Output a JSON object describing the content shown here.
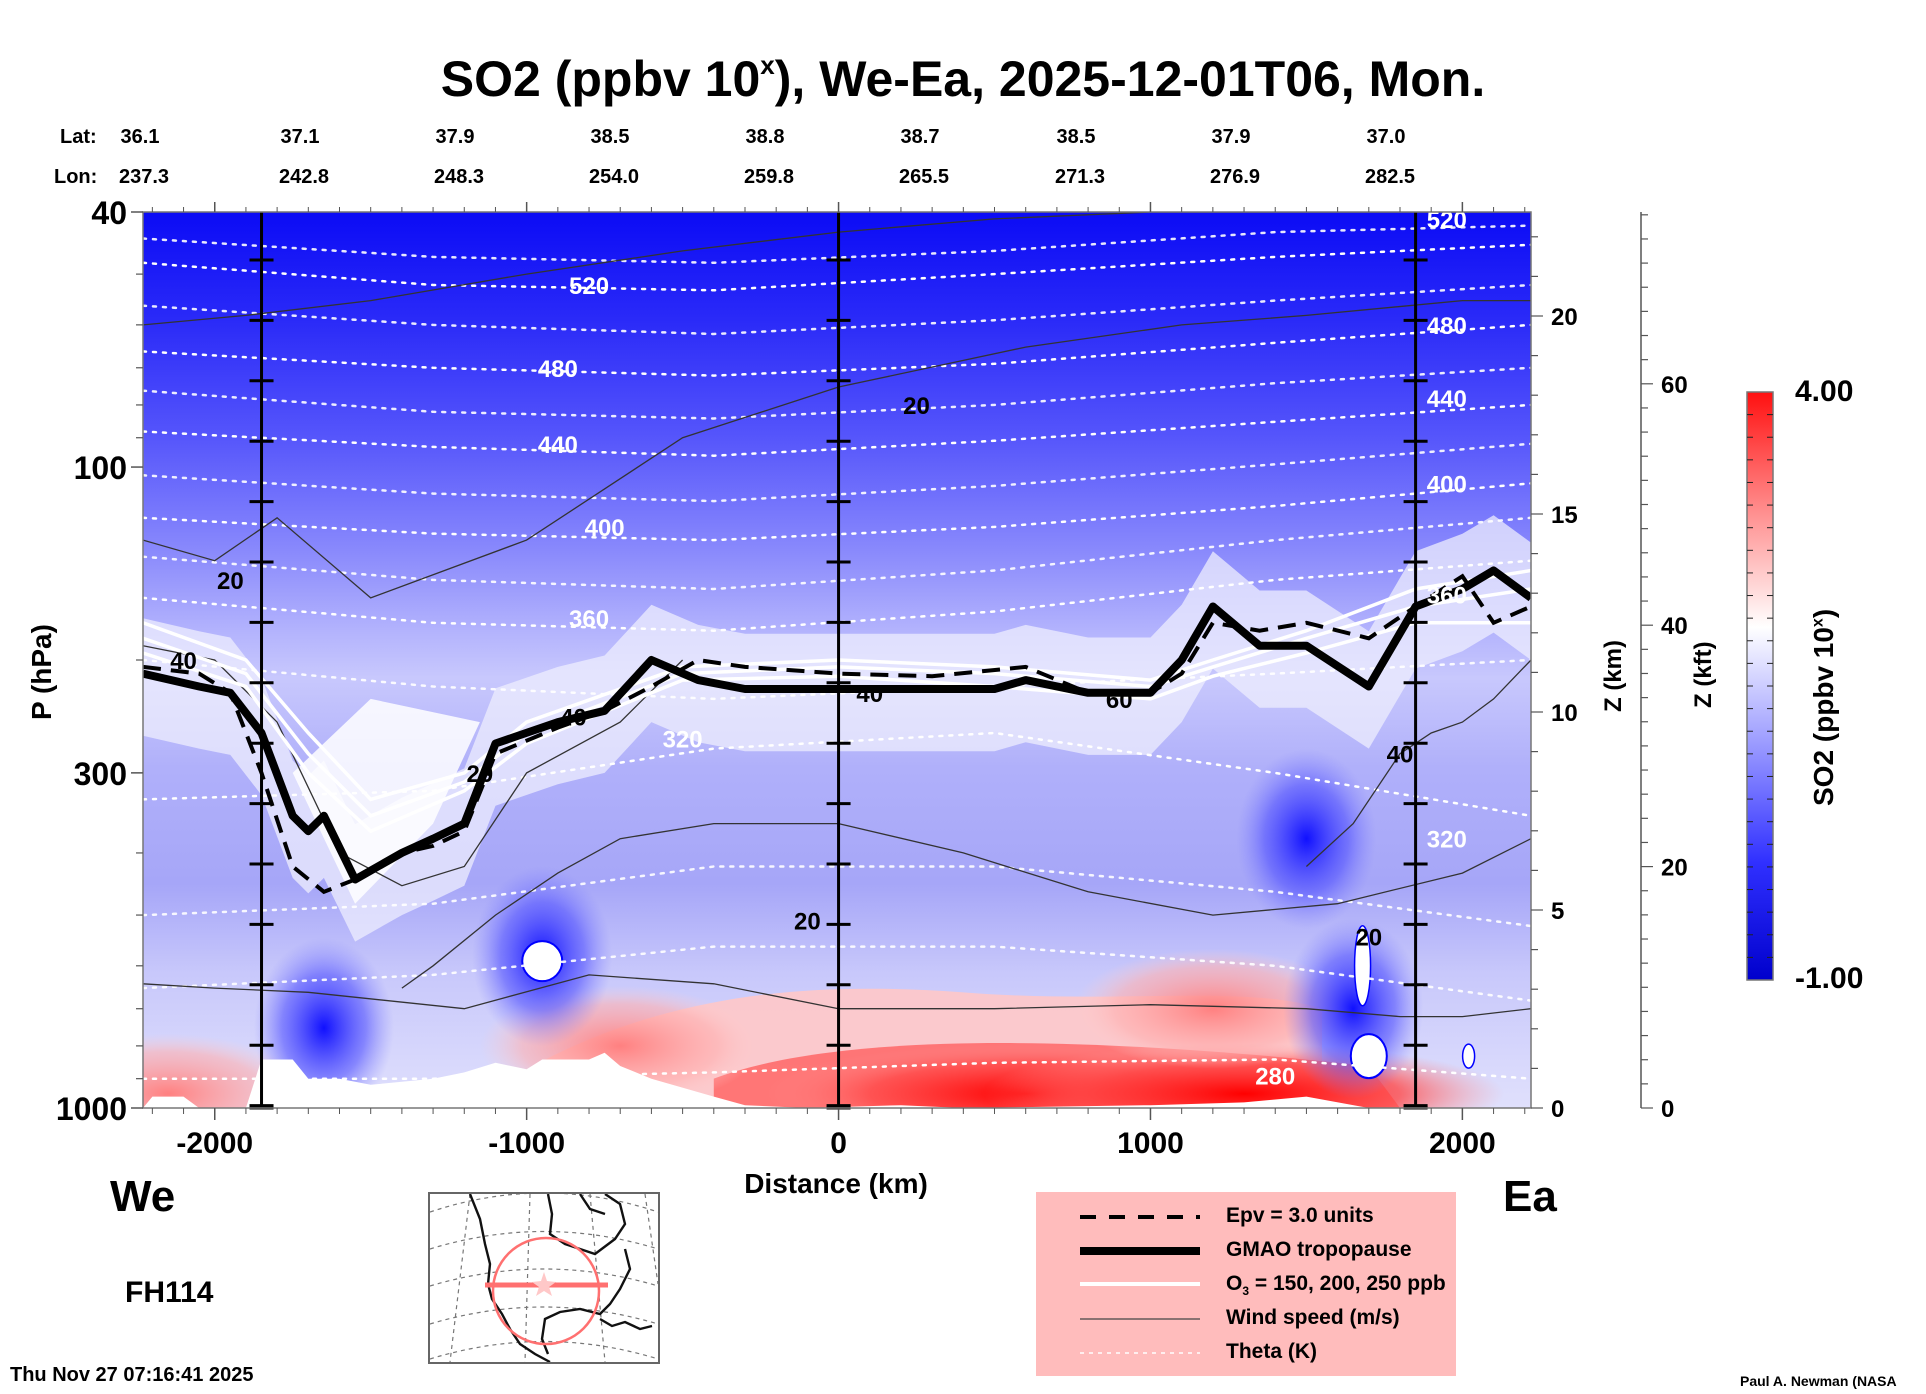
{
  "title": {
    "main": "SO2 (ppbv 10",
    "sup": "x",
    "rest": "), We-Ea, 2025-12-01T06, Mon."
  },
  "latlon": {
    "lat_label": "Lat:",
    "lon_label": "Lon:",
    "lat": [
      "36.1",
      "37.1",
      "37.9",
      "38.5",
      "38.8",
      "38.7",
      "38.5",
      "37.9",
      "37.0"
    ],
    "lon": [
      "237.3",
      "242.8",
      "248.3",
      "254.0",
      "259.8",
      "265.5",
      "271.3",
      "276.9",
      "282.5"
    ]
  },
  "left_direction": "We",
  "right_direction": "Ea",
  "forecast_hour": "FH114",
  "timestamp": "Thu Nov 27 07:16:41 2025",
  "credit": "Paul A. Newman (NASA",
  "legend": [
    {
      "style": "dashed",
      "label": "Epv = 3.0 units"
    },
    {
      "style": "thick",
      "label": "GMAO tropopause"
    },
    {
      "style": "white",
      "label_pre": "O",
      "label_sub": "3",
      "label": " = 150, 200, 250 ppb"
    },
    {
      "style": "thin",
      "label": "Wind speed (m/s)"
    },
    {
      "style": "dotted",
      "label": "Theta (K)"
    }
  ],
  "colorbar": {
    "label": "SO2 (ppbv 10",
    "label_sup": "x",
    "label_end": ")",
    "max_label": "4.00",
    "min_label": "-1.00",
    "range": [
      -1.0,
      4.0
    ],
    "low_color": "#0000d0",
    "mid_color": "#ffffff",
    "high_color": "#ff0000"
  },
  "chart_data": {
    "type": "heatmap",
    "title": "SO2 (ppbv 10^x), We-Ea, 2025-12-01T06, Mon.",
    "xlabel": "Distance (km)",
    "ylabel": "P (hPa)",
    "y2label": "Z (km)",
    "y3label": "Z (kft)",
    "xlim": [
      -2230,
      2220
    ],
    "ylim": [
      1000,
      40
    ],
    "yscale": "log",
    "x_ticks": [
      -2000,
      -1000,
      0,
      1000,
      2000
    ],
    "x_tick_labels": [
      "-2000",
      "-1000",
      "0",
      "1000",
      "2000"
    ],
    "y_ticks": [
      40,
      100,
      300,
      1000
    ],
    "y_tick_labels": [
      "40",
      "100",
      "300",
      "1000"
    ],
    "zkm_ticks": [
      0,
      5,
      10,
      15,
      20
    ],
    "zkm_tick_labels": [
      "0",
      "5",
      "10",
      "15",
      "20"
    ],
    "zkft_ticks": [
      0,
      20,
      40,
      60
    ],
    "zkft_tick_labels": [
      "0",
      "20",
      "40",
      "60"
    ],
    "vertical_markers_km": [
      -1850,
      0,
      1850
    ],
    "theta_levels": [
      {
        "value": 520,
        "label": "520",
        "p": [
          48,
          52,
          53,
          50,
          47,
          45
        ]
      },
      {
        "value": 480,
        "label": "480",
        "p": [
          66,
          70,
          72,
          69,
          64,
          60
        ]
      },
      {
        "value": 440,
        "label": "440",
        "p": [
          88,
          93,
          96,
          91,
          85,
          80
        ]
      },
      {
        "value": 400,
        "label": "400",
        "p": [
          120,
          127,
          130,
          124,
          115,
          106
        ]
      },
      {
        "value": 360,
        "label": "360",
        "p": [
          160,
          175,
          180,
          168,
          150,
          140
        ]
      },
      {
        "value": 320,
        "label": "320",
        "p": [
          330,
          320,
          275,
          260,
          300,
          350
        ]
      },
      {
        "value": 280,
        "label": "280",
        "p": [
          900,
          900,
          880,
          850,
          840,
          900
        ]
      }
    ],
    "theta_x": [
      -2230,
      -1300,
      -400,
      500,
      1400,
      2220
    ],
    "theta_label_positions": [
      {
        "label": "520",
        "x": -800,
        "p": 52
      },
      {
        "label": "480",
        "x": -900,
        "p": 70
      },
      {
        "label": "440",
        "x": -900,
        "p": 92
      },
      {
        "label": "400",
        "x": -750,
        "p": 124
      },
      {
        "label": "360",
        "x": -800,
        "p": 172
      },
      {
        "label": "320",
        "x": -500,
        "p": 265
      },
      {
        "label": "520",
        "x": 1950,
        "p": 41
      },
      {
        "label": "480",
        "x": 1950,
        "p": 60
      },
      {
        "label": "440",
        "x": 1950,
        "p": 78
      },
      {
        "label": "400",
        "x": 1950,
        "p": 106
      },
      {
        "label": "360",
        "x": 1950,
        "p": 158
      },
      {
        "label": "320",
        "x": 1950,
        "p": 380
      },
      {
        "label": "280",
        "x": 1400,
        "p": 890
      }
    ],
    "tropopause": {
      "x": [
        -2230,
        -2050,
        -1950,
        -1850,
        -1750,
        -1700,
        -1650,
        -1550,
        -1400,
        -1300,
        -1200,
        -1100,
        -900,
        -750,
        -600,
        -450,
        -300,
        0,
        500,
        600,
        800,
        1000,
        1100,
        1200,
        1350,
        1500,
        1700,
        1850,
        2000,
        2100,
        2220
      ],
      "p": [
        210,
        220,
        225,
        260,
        350,
        370,
        350,
        440,
        400,
        380,
        360,
        270,
        250,
        240,
        200,
        215,
        222,
        222,
        222,
        215,
        225,
        225,
        200,
        165,
        190,
        190,
        220,
        165,
        155,
        145,
        160
      ]
    },
    "epv3": {
      "x": [
        -2230,
        -2050,
        -1950,
        -1850,
        -1750,
        -1650,
        -1550,
        -1400,
        -1300,
        -1200,
        -1100,
        -900,
        -750,
        -600,
        -450,
        -300,
        0,
        300,
        600,
        800,
        1000,
        1100,
        1200,
        1350,
        1500,
        1700,
        1850,
        2000,
        2100,
        2220
      ],
      "p": [
        205,
        210,
        225,
        300,
        420,
        460,
        440,
        400,
        390,
        370,
        280,
        255,
        240,
        220,
        200,
        205,
        210,
        212,
        205,
        225,
        225,
        210,
        175,
        180,
        175,
        185,
        165,
        148,
        175,
        165
      ]
    },
    "o3_lines": [
      {
        "value": 150,
        "x": [
          -2230,
          -1900,
          -1700,
          -1500,
          -1200,
          -1000,
          -500,
          0,
          500,
          1000,
          1200,
          1500,
          1850,
          2220
        ],
        "p": [
          175,
          200,
          260,
          330,
          300,
          250,
          205,
          200,
          205,
          215,
          200,
          180,
          155,
          145
        ]
      },
      {
        "value": 200,
        "x": [
          -2230,
          -1900,
          -1700,
          -1500,
          -1200,
          -1000,
          -500,
          0,
          500,
          1000,
          1200,
          1500,
          1850,
          2220
        ],
        "p": [
          185,
          210,
          280,
          350,
          310,
          260,
          210,
          205,
          210,
          220,
          205,
          185,
          165,
          155
        ]
      },
      {
        "value": 250,
        "x": [
          -2230,
          -1900,
          -1700,
          -1500,
          -1200,
          -1000,
          -500,
          0,
          500,
          1000,
          1200,
          1500,
          1850,
          2220
        ],
        "p": [
          195,
          220,
          300,
          370,
          320,
          270,
          215,
          212,
          220,
          230,
          212,
          195,
          175,
          175
        ]
      }
    ],
    "wind_contours": [
      {
        "label": "20",
        "x": [
          -2230,
          -1900,
          -1500,
          -1000,
          -500,
          0,
          500,
          1000,
          1500,
          1900,
          2220
        ],
        "p": [
          60,
          58,
          55,
          50,
          46,
          43,
          41,
          40,
          40,
          40,
          40
        ]
      },
      {
        "label": "20",
        "x": [
          -2230,
          -2000,
          -1800,
          -1500,
          -1000,
          -500,
          0,
          600,
          1100,
          1500,
          2000,
          2220
        ],
        "p": [
          130,
          140,
          120,
          160,
          130,
          90,
          75,
          65,
          60,
          58,
          55,
          55
        ]
      },
      {
        "label": "40",
        "x": [
          -2230,
          -2000,
          -1800,
          -1600,
          -1400,
          -1200,
          -1000,
          -700,
          -500
        ],
        "p": [
          190,
          200,
          250,
          400,
          450,
          420,
          300,
          250,
          200
        ]
      },
      {
        "label": "20",
        "x": [
          -1400,
          -1300,
          -1100,
          -900,
          -700,
          -400,
          0,
          400,
          800,
          1200,
          1600,
          2000,
          2220
        ],
        "p": [
          650,
          600,
          500,
          430,
          380,
          360,
          360,
          400,
          460,
          500,
          480,
          430,
          380
        ]
      },
      {
        "label": "20",
        "x": [
          -2230,
          -2000,
          -1700,
          -1200,
          -800,
          -400,
          0,
          500,
          1000,
          1500,
          1800,
          2000,
          2220
        ],
        "p": [
          640,
          650,
          660,
          700,
          620,
          640,
          700,
          700,
          690,
          700,
          720,
          720,
          700
        ]
      },
      {
        "label": "40",
        "x": [
          1500,
          1650,
          1800,
          1900,
          2000,
          2100,
          2220
        ],
        "p": [
          420,
          360,
          280,
          260,
          250,
          230,
          200
        ]
      }
    ],
    "wind_label_positions": [
      {
        "label": "20",
        "x": 250,
        "p": 80
      },
      {
        "label": "20",
        "x": -1950,
        "p": 150
      },
      {
        "label": "40",
        "x": -2100,
        "p": 200
      },
      {
        "label": "20",
        "x": -1150,
        "p": 300
      },
      {
        "label": "40",
        "x": -850,
        "p": 245
      },
      {
        "label": "40",
        "x": 100,
        "p": 225
      },
      {
        "label": "60",
        "x": 900,
        "p": 230
      },
      {
        "label": "40",
        "x": 1800,
        "p": 280
      },
      {
        "label": "20",
        "x": -100,
        "p": 510
      },
      {
        "label": "20",
        "x": 1700,
        "p": 540
      }
    ],
    "so2_field": {
      "description": "log10 SO2 ppbv; strongly negative (deep blue) aloft, near 0 (white) around tropopause, positive (red) in boundary layer",
      "upper_value": -0.9,
      "tropopause_value": 0.0,
      "midtrop_value": -0.4,
      "boundary_layer_value": 1.5,
      "hotspots": [
        {
          "x": 600,
          "p": 950,
          "value": 3.5
        },
        {
          "x": 1300,
          "p": 950,
          "value": 3.8
        },
        {
          "x": -700,
          "p": 800,
          "value": 1.5
        },
        {
          "x": 1200,
          "p": 700,
          "value": 1.0
        },
        {
          "x": -2150,
          "p": 950,
          "value": 1.5
        }
      ],
      "coldspots": [
        {
          "x": -950,
          "p": 580,
          "value": -0.9
        },
        {
          "x": 1650,
          "p": 700,
          "value": -0.9
        },
        {
          "x": 1500,
          "p": 380,
          "value": -0.6
        },
        {
          "x": -1650,
          "p": 750,
          "value": -0.8
        }
      ]
    }
  }
}
